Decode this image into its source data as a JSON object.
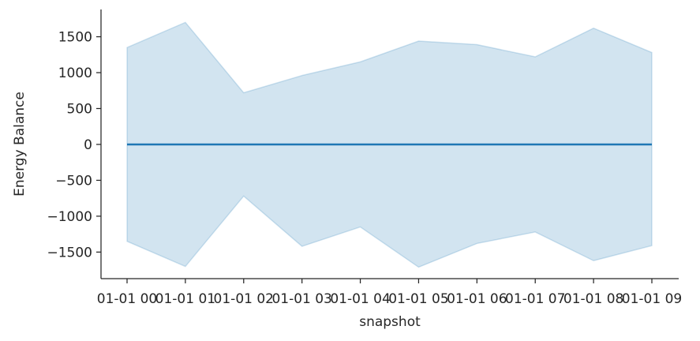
{
  "chart_data": {
    "type": "area",
    "xlabel": "snapshot",
    "ylabel": "Energy Balance",
    "x": [
      "01-01 00",
      "01-01 01",
      "01-01 02",
      "01-01 03",
      "01-01 04",
      "01-01 05",
      "01-01 06",
      "01-01 07",
      "01-01 08",
      "01-01 09"
    ],
    "series": [
      {
        "values": [
          0,
          0,
          0,
          0,
          0,
          0,
          0,
          0,
          0,
          0
        ],
        "band_upper": [
          1350,
          1700,
          720,
          960,
          1150,
          1440,
          1390,
          1220,
          1620,
          1280
        ],
        "band_lower": [
          -1350,
          -1700,
          -720,
          -1420,
          -1150,
          -1710,
          -1380,
          -1220,
          -1620,
          -1410
        ]
      }
    ],
    "ylim": [
      -1870,
      1880
    ],
    "yticks": [
      1500,
      1000,
      500,
      0,
      -500,
      -1000,
      -1500
    ],
    "ytick_labels": [
      "1500",
      "1000",
      "500",
      "0",
      "−500",
      "−1000",
      "−1500"
    ],
    "grid": false,
    "colors": {
      "line": "#1f77b4",
      "band": "#1f77b4",
      "axis": "#262626"
    }
  }
}
